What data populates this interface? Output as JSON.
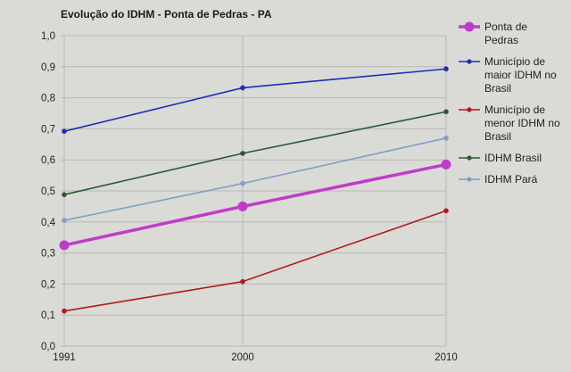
{
  "chart_data": {
    "type": "line",
    "title": "Evolução do IDHM - Ponta de Pedras - PA",
    "categories": [
      "1991",
      "2000",
      "2010"
    ],
    "ylim": [
      0,
      1.0
    ],
    "yticks": [
      "0,0",
      "0,1",
      "0,2",
      "0,3",
      "0,4",
      "0,5",
      "0,6",
      "0,7",
      "0,8",
      "0,9",
      "1,0"
    ],
    "grid": true,
    "legend_position": "right",
    "series": [
      {
        "name": "Ponta de Pedras",
        "color": "#c03cc8",
        "emphasis": true,
        "values": [
          0.325,
          0.45,
          0.585
        ]
      },
      {
        "name": "Município de maior IDHM no Brasil",
        "color": "#1c2eb8",
        "values": [
          0.692,
          0.832,
          0.893
        ]
      },
      {
        "name": "Município de menor IDHM no Brasil",
        "color": "#b01a1a",
        "values": [
          0.113,
          0.208,
          0.436
        ]
      },
      {
        "name": "IDHM Brasil",
        "color": "#2a5a34",
        "values": [
          0.488,
          0.621,
          0.755
        ]
      },
      {
        "name": "IDHM Pará",
        "color": "#7f9ec9",
        "values": [
          0.405,
          0.524,
          0.67
        ]
      }
    ]
  }
}
